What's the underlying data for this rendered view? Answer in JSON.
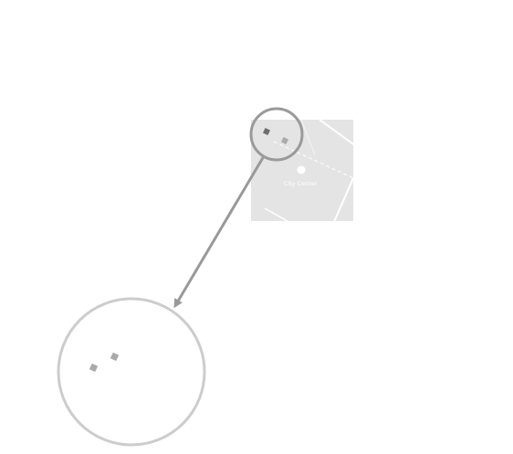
{
  "map": {
    "place_label": "City Center",
    "colors": {
      "map_background": "#e4e4e4",
      "road": "#ffffff",
      "callout_ring": "#9a9a9a",
      "magnifier_ring": "#cccccc",
      "arrow": "#999999",
      "marker_dark": "#6e6e6e",
      "marker_light": "#aaaaaa"
    }
  }
}
